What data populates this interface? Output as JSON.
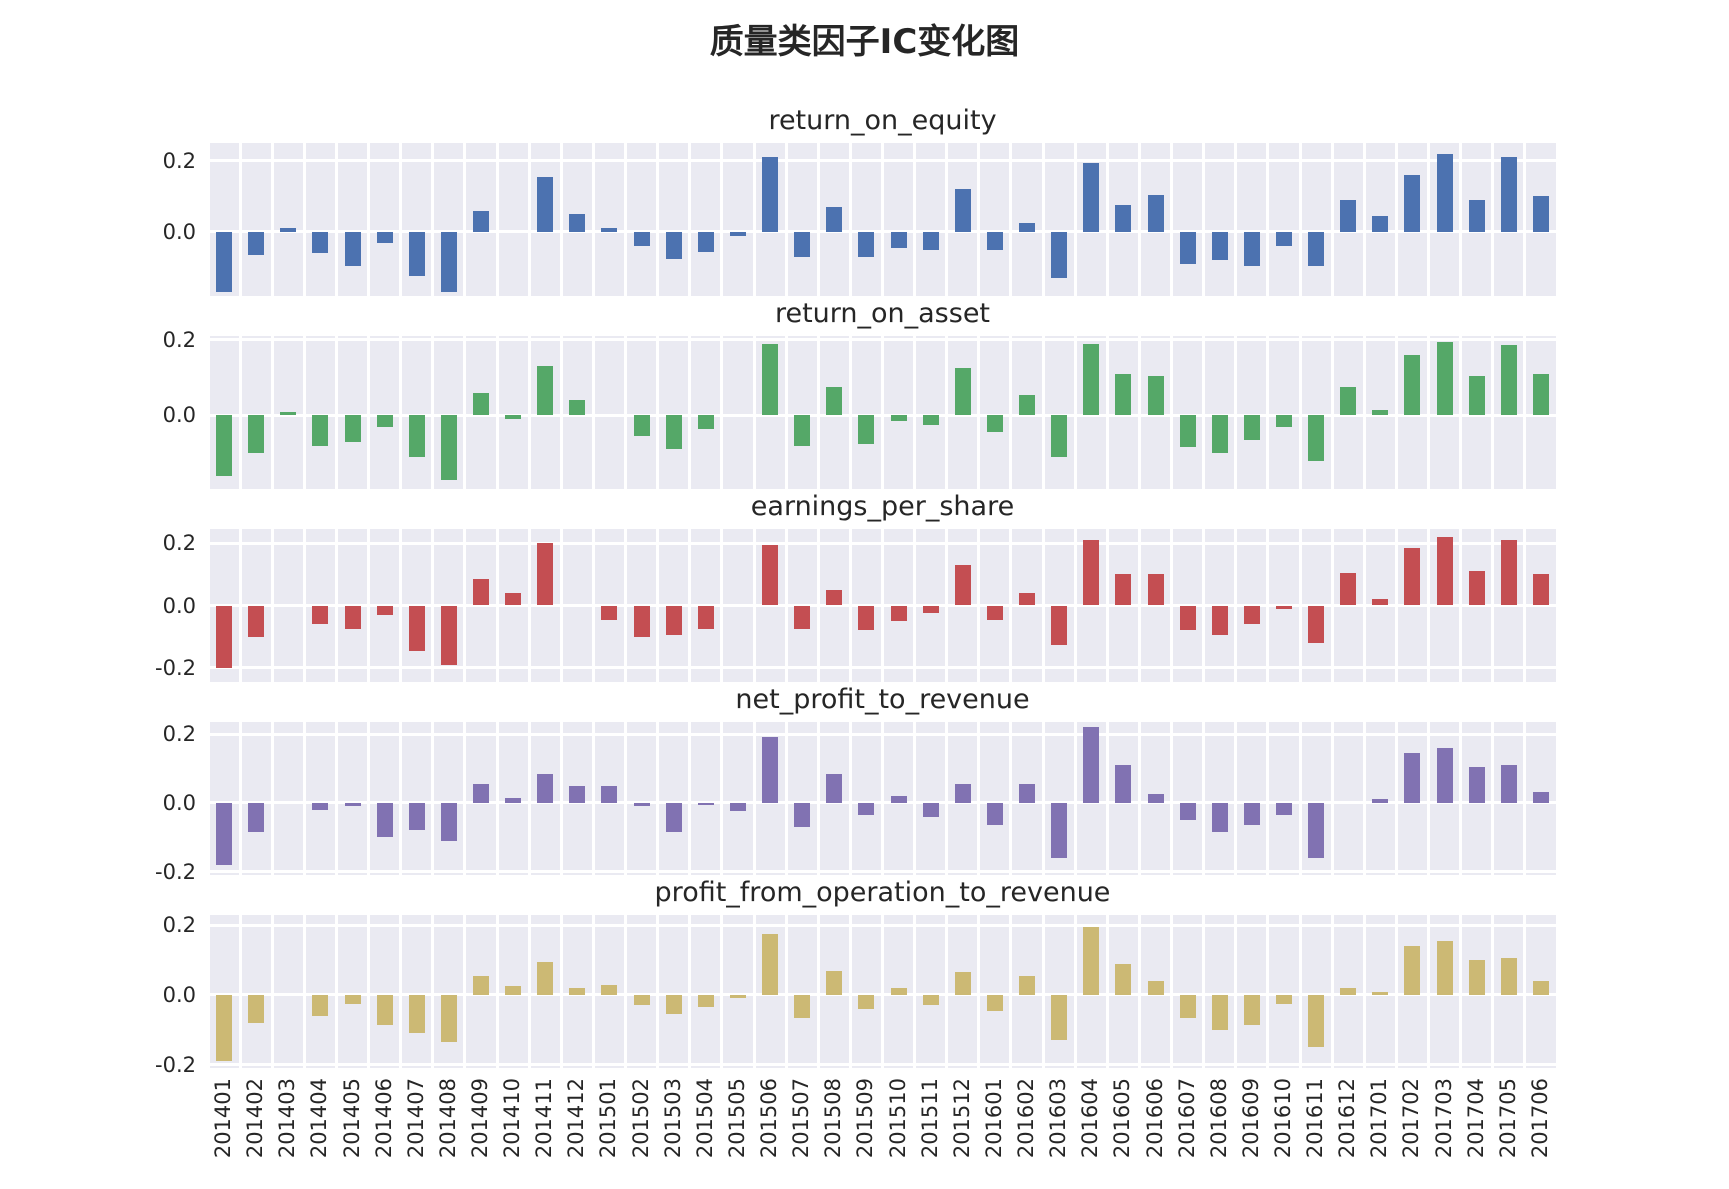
{
  "title": "质量类因子IC变化图",
  "chart_data": {
    "type": "bar",
    "grid": true,
    "legend_position": "none",
    "x_axis": {
      "tick_rotation": 90
    },
    "categories": [
      "201401",
      "201402",
      "201403",
      "201404",
      "201405",
      "201406",
      "201407",
      "201408",
      "201409",
      "201410",
      "201411",
      "201412",
      "201501",
      "201502",
      "201503",
      "201504",
      "201505",
      "201506",
      "201507",
      "201508",
      "201509",
      "201510",
      "201511",
      "201512",
      "201601",
      "201602",
      "201603",
      "201604",
      "201605",
      "201606",
      "201607",
      "201608",
      "201609",
      "201610",
      "201611",
      "201612",
      "201701",
      "201702",
      "201703",
      "201704",
      "201705",
      "201706"
    ],
    "subplots": [
      {
        "title": "return_on_equity",
        "color": "#4C72B0",
        "ylim": [
          -0.18,
          0.25
        ],
        "yticks": [
          0.2,
          0.0
        ],
        "ytick_labels": [
          "0.2",
          "0.0"
        ],
        "values": [
          -0.17,
          -0.065,
          0.01,
          -0.06,
          -0.095,
          -0.03,
          -0.125,
          -0.17,
          0.06,
          0,
          0.155,
          0.05,
          0.01,
          -0.04,
          -0.075,
          -0.055,
          -0.01,
          0.21,
          -0.07,
          0.07,
          -0.07,
          -0.045,
          -0.05,
          0.12,
          -0.05,
          0.025,
          -0.13,
          0.195,
          0.075,
          0.105,
          -0.09,
          -0.08,
          -0.095,
          -0.04,
          -0.095,
          0.09,
          0.045,
          0.16,
          0.22,
          0.09,
          0.21,
          0.1
        ]
      },
      {
        "title": "return_on_asset",
        "color": "#55A868",
        "ylim": [
          -0.195,
          0.21
        ],
        "yticks": [
          0.2,
          0.0
        ],
        "ytick_labels": [
          "0.2",
          "0.0"
        ],
        "values": [
          -0.16,
          -0.1,
          0.01,
          -0.08,
          -0.07,
          -0.03,
          -0.11,
          -0.17,
          0.06,
          -0.01,
          0.13,
          0.04,
          0,
          -0.055,
          -0.09,
          -0.035,
          0,
          0.19,
          -0.08,
          0.075,
          -0.075,
          -0.015,
          -0.025,
          0.125,
          -0.045,
          0.055,
          -0.11,
          0.19,
          0.11,
          0.105,
          -0.085,
          -0.1,
          -0.065,
          -0.03,
          -0.12,
          0.075,
          0.015,
          0.16,
          0.195,
          0.105,
          0.185,
          0.11
        ]
      },
      {
        "title": "earnings_per_share",
        "color": "#C44E52",
        "ylim": [
          -0.245,
          0.245
        ],
        "yticks": [
          0.2,
          0.0,
          -0.2
        ],
        "ytick_labels": [
          "0.2",
          "0.0",
          "-0.2"
        ],
        "values": [
          -0.2,
          -0.1,
          0,
          -0.06,
          -0.075,
          -0.03,
          -0.145,
          -0.19,
          0.085,
          0.04,
          0.2,
          0,
          -0.045,
          -0.1,
          -0.095,
          -0.075,
          0,
          0.195,
          -0.075,
          0.05,
          -0.08,
          -0.05,
          -0.025,
          0.13,
          -0.045,
          0.04,
          -0.125,
          0.21,
          0.1,
          0.1,
          -0.08,
          -0.095,
          -0.06,
          -0.01,
          -0.12,
          0.105,
          0.02,
          0.185,
          0.22,
          0.11,
          0.21,
          0.1
        ]
      },
      {
        "title": "net_profit_to_revenue",
        "color": "#8172B2",
        "ylim": [
          -0.21,
          0.235
        ],
        "yticks": [
          0.2,
          0.0,
          -0.2
        ],
        "ytick_labels": [
          "0.2",
          "0.0",
          "-0.2"
        ],
        "values": [
          -0.18,
          -0.085,
          0,
          -0.02,
          -0.01,
          -0.1,
          -0.08,
          -0.11,
          0.055,
          0.015,
          0.085,
          0.05,
          0.05,
          -0.01,
          -0.085,
          -0.005,
          -0.025,
          0.19,
          -0.07,
          0.085,
          -0.035,
          0.02,
          -0.04,
          0.055,
          -0.065,
          0.055,
          -0.16,
          0.22,
          0.11,
          0.025,
          -0.05,
          -0.085,
          -0.065,
          -0.035,
          -0.16,
          0,
          0.01,
          0.145,
          0.16,
          0.105,
          0.11,
          0.03
        ]
      },
      {
        "title": "profit_from_operation_to_revenue",
        "color": "#CCB974",
        "ylim": [
          -0.21,
          0.23
        ],
        "yticks": [
          0.2,
          0.0,
          -0.2
        ],
        "ytick_labels": [
          "0.2",
          "0.0",
          "-0.2"
        ],
        "values": [
          -0.19,
          -0.08,
          0,
          -0.06,
          -0.025,
          -0.085,
          -0.11,
          -0.135,
          0.055,
          0.025,
          0.095,
          0.02,
          0.03,
          -0.03,
          -0.055,
          -0.035,
          -0.01,
          0.175,
          -0.065,
          0.07,
          -0.04,
          0.02,
          -0.03,
          0.065,
          -0.045,
          0.055,
          -0.13,
          0.195,
          0.09,
          0.04,
          -0.065,
          -0.1,
          -0.085,
          -0.025,
          -0.15,
          0.02,
          0.01,
          0.14,
          0.155,
          0.1,
          0.105,
          0.04
        ]
      }
    ]
  }
}
